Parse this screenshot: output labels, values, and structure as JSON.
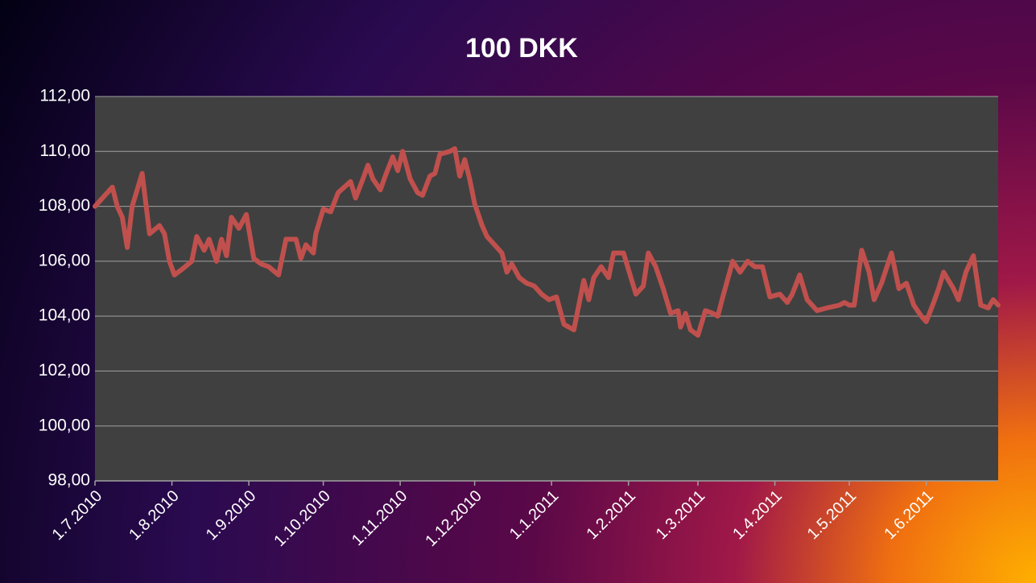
{
  "chart_data": {
    "type": "line",
    "title": "100 DKK",
    "color": "#c0504d",
    "grid": true,
    "x": [
      "2010-07-01",
      "2010-07-03",
      "2010-07-08",
      "2010-07-10",
      "2010-07-12",
      "2010-07-14",
      "2010-07-16",
      "2010-07-20",
      "2010-07-23",
      "2010-07-27",
      "2010-07-29",
      "2010-07-31",
      "2010-08-02",
      "2010-08-05",
      "2010-08-09",
      "2010-08-11",
      "2010-08-14",
      "2010-08-16",
      "2010-08-19",
      "2010-08-21",
      "2010-08-23",
      "2010-08-25",
      "2010-08-28",
      "2010-08-31",
      "2010-09-03",
      "2010-09-06",
      "2010-09-09",
      "2010-09-13",
      "2010-09-16",
      "2010-09-20",
      "2010-09-22",
      "2010-09-24",
      "2010-09-27",
      "2010-09-28",
      "2010-10-01",
      "2010-10-04",
      "2010-10-07",
      "2010-10-12",
      "2010-10-14",
      "2010-10-17",
      "2010-10-19",
      "2010-10-21",
      "2010-10-24",
      "2010-10-26",
      "2010-10-29",
      "2010-10-31",
      "2010-11-02",
      "2010-11-05",
      "2010-11-08",
      "2010-11-10",
      "2010-11-13",
      "2010-11-15",
      "2010-11-17",
      "2010-11-21",
      "2010-11-23",
      "2010-11-25",
      "2010-11-27",
      "2010-11-29",
      "2010-12-01",
      "2010-12-04",
      "2010-12-06",
      "2010-12-09",
      "2010-12-12",
      "2010-12-14",
      "2010-12-16",
      "2010-12-19",
      "2010-12-22",
      "2010-12-25",
      "2010-12-28",
      "2010-12-31",
      "2011-01-03",
      "2011-01-06",
      "2011-01-10",
      "2011-01-14",
      "2011-01-16",
      "2011-01-18",
      "2011-01-21",
      "2011-01-24",
      "2011-01-26",
      "2011-01-30",
      "2011-02-01",
      "2011-02-04",
      "2011-02-07",
      "2011-02-09",
      "2011-02-12",
      "2011-02-15",
      "2011-02-18",
      "2011-02-21",
      "2011-02-22",
      "2011-02-24",
      "2011-02-26",
      "2011-03-01",
      "2011-03-04",
      "2011-03-07",
      "2011-03-09",
      "2011-03-11",
      "2011-03-15",
      "2011-03-18",
      "2011-03-21",
      "2011-03-24",
      "2011-03-27",
      "2011-03-30",
      "2011-04-03",
      "2011-04-06",
      "2011-04-08",
      "2011-04-11",
      "2011-04-14",
      "2011-04-18",
      "2011-04-22",
      "2011-04-27",
      "2011-04-29",
      "2011-05-01",
      "2011-05-03",
      "2011-05-06",
      "2011-05-09",
      "2011-05-11",
      "2011-05-14",
      "2011-05-18",
      "2011-05-21",
      "2011-05-24",
      "2011-05-27",
      "2011-05-30",
      "2011-06-01",
      "2011-06-04",
      "2011-06-06",
      "2011-06-08",
      "2011-06-12",
      "2011-06-14",
      "2011-06-17",
      "2011-06-20",
      "2011-06-23",
      "2011-06-26",
      "2011-06-28",
      "2011-06-30"
    ],
    "values": [
      108.0,
      108.2,
      108.7,
      108.0,
      107.6,
      106.5,
      108.0,
      109.2,
      107.0,
      107.3,
      107.0,
      106.0,
      105.5,
      105.7,
      106.0,
      106.9,
      106.4,
      106.8,
      106.0,
      106.8,
      106.2,
      107.6,
      107.2,
      107.7,
      106.1,
      105.9,
      105.8,
      105.5,
      106.8,
      106.8,
      106.1,
      106.6,
      106.3,
      107.0,
      107.9,
      107.8,
      108.5,
      108.9,
      108.3,
      109.0,
      109.5,
      109.0,
      108.6,
      109.1,
      109.8,
      109.3,
      110.0,
      109.0,
      108.5,
      108.4,
      109.1,
      109.2,
      109.9,
      110.0,
      110.1,
      109.1,
      109.7,
      109.0,
      108.1,
      107.3,
      106.9,
      106.6,
      106.3,
      105.6,
      105.9,
      105.4,
      105.2,
      105.1,
      104.8,
      104.6,
      104.7,
      103.7,
      103.5,
      105.3,
      104.6,
      105.4,
      105.8,
      105.4,
      106.3,
      106.3,
      105.7,
      104.8,
      105.1,
      106.3,
      105.8,
      105.0,
      104.1,
      104.2,
      103.6,
      104.1,
      103.5,
      103.3,
      104.2,
      104.1,
      104.0,
      104.7,
      106.0,
      105.6,
      106.0,
      105.8,
      105.8,
      104.7,
      104.8,
      104.5,
      104.8,
      105.5,
      104.6,
      104.2,
      104.3,
      104.4,
      104.5,
      104.4,
      104.4,
      106.4,
      105.6,
      104.6,
      105.2,
      106.3,
      105.0,
      105.2,
      104.4,
      104.0,
      103.8,
      104.5,
      105.0,
      105.6,
      105.0,
      104.6,
      105.6,
      106.2,
      104.4,
      104.3,
      104.6,
      104.4
    ],
    "xlim": [
      "2010-07-01",
      "2011-06-30"
    ],
    "xticks": [
      {
        "value": "2010-07-01",
        "label": "1.7.2010"
      },
      {
        "value": "2010-08-01",
        "label": "1.8.2010"
      },
      {
        "value": "2010-09-01",
        "label": "1.9.2010"
      },
      {
        "value": "2010-10-01",
        "label": "1.10.2010"
      },
      {
        "value": "2010-11-01",
        "label": "1.11.2010"
      },
      {
        "value": "2010-12-01",
        "label": "1.12.2010"
      },
      {
        "value": "2011-01-01",
        "label": "1.1.2011"
      },
      {
        "value": "2011-02-01",
        "label": "1.2.2011"
      },
      {
        "value": "2011-03-01",
        "label": "1.3.2011"
      },
      {
        "value": "2011-04-01",
        "label": "1.4.2011"
      },
      {
        "value": "2011-05-01",
        "label": "1.5.2011"
      },
      {
        "value": "2011-06-01",
        "label": "1.6.2011"
      }
    ],
    "ylim": [
      98,
      112
    ],
    "yticks": [
      {
        "value": 98,
        "label": "98,00"
      },
      {
        "value": 100,
        "label": "100,00"
      },
      {
        "value": 102,
        "label": "102,00"
      },
      {
        "value": 104,
        "label": "104,00"
      },
      {
        "value": 106,
        "label": "106,00"
      },
      {
        "value": 108,
        "label": "108,00"
      },
      {
        "value": 110,
        "label": "110,00"
      },
      {
        "value": 112,
        "label": "112,00"
      }
    ]
  }
}
